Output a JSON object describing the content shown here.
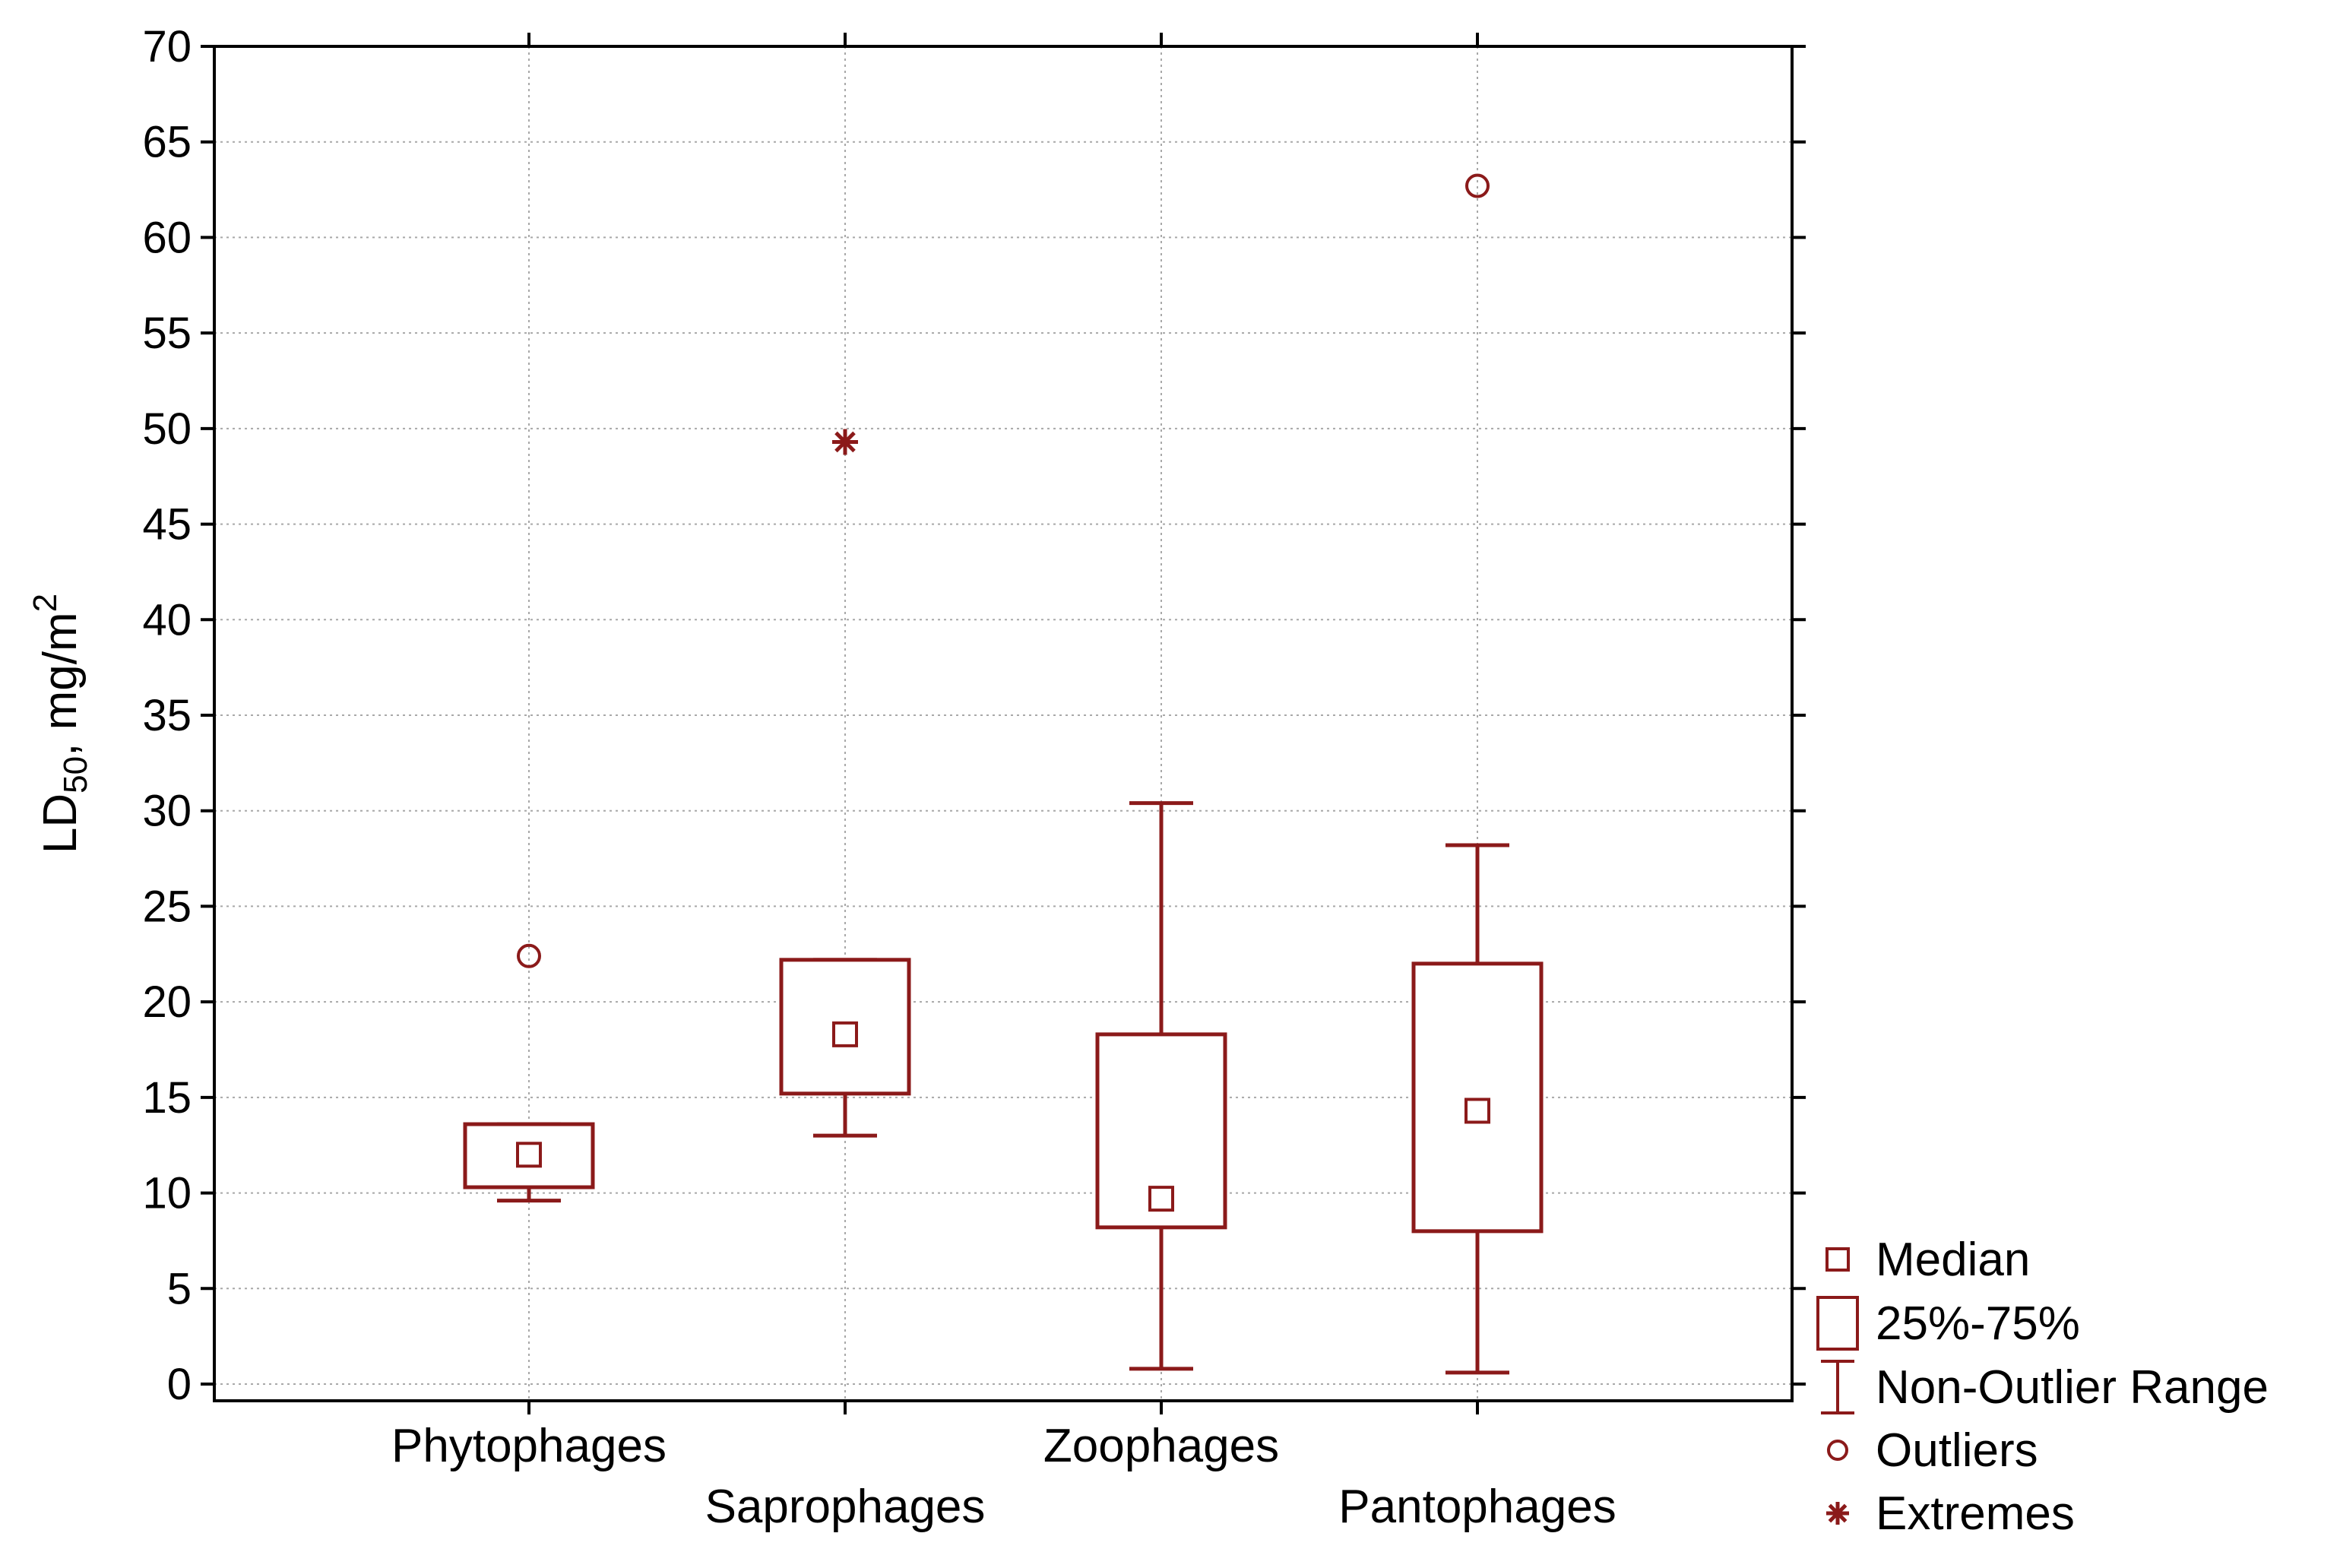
{
  "chart_data": {
    "type": "boxplot",
    "title": "",
    "xlabel": "",
    "ylabel": {
      "base": "LD",
      "sub": "50",
      "mid": ", mg/m",
      "sup": "2"
    },
    "ylim": [
      0,
      70
    ],
    "y_ticks": [
      0,
      5,
      10,
      15,
      20,
      25,
      30,
      35,
      40,
      45,
      50,
      55,
      60,
      65,
      70
    ],
    "grid": true,
    "legend_position": "bottom-right, outside plot",
    "color": "#8B1A1A",
    "categories": [
      "Phytophages",
      "Saprophages",
      "Zoophages",
      "Pantophages"
    ],
    "series": [
      {
        "category": "Phytophages",
        "median": 12.0,
        "q1": 10.3,
        "q3": 13.6,
        "whisker_low": 9.6,
        "whisker_high": 13.6,
        "outliers": [
          22.4
        ],
        "extremes": []
      },
      {
        "category": "Saprophages",
        "median": 18.3,
        "q1": 15.2,
        "q3": 22.2,
        "whisker_low": 13.0,
        "whisker_high": 22.2,
        "outliers": [],
        "extremes": [
          49.3
        ]
      },
      {
        "category": "Zoophages",
        "median": 9.7,
        "q1": 8.2,
        "q3": 18.3,
        "whisker_low": 0.8,
        "whisker_high": 30.4,
        "outliers": [],
        "extremes": []
      },
      {
        "category": "Pantophages",
        "median": 14.3,
        "q1": 8.0,
        "q3": 22.0,
        "whisker_low": 0.6,
        "whisker_high": 28.2,
        "outliers": [
          62.7
        ],
        "extremes": []
      }
    ],
    "legend": [
      {
        "key": "median",
        "label": "Median"
      },
      {
        "key": "box",
        "label": "25%-75%"
      },
      {
        "key": "whisker",
        "label": "Non-Outlier Range"
      },
      {
        "key": "outlier",
        "label": "Outliers"
      },
      {
        "key": "extreme",
        "label": "Extremes"
      }
    ]
  }
}
